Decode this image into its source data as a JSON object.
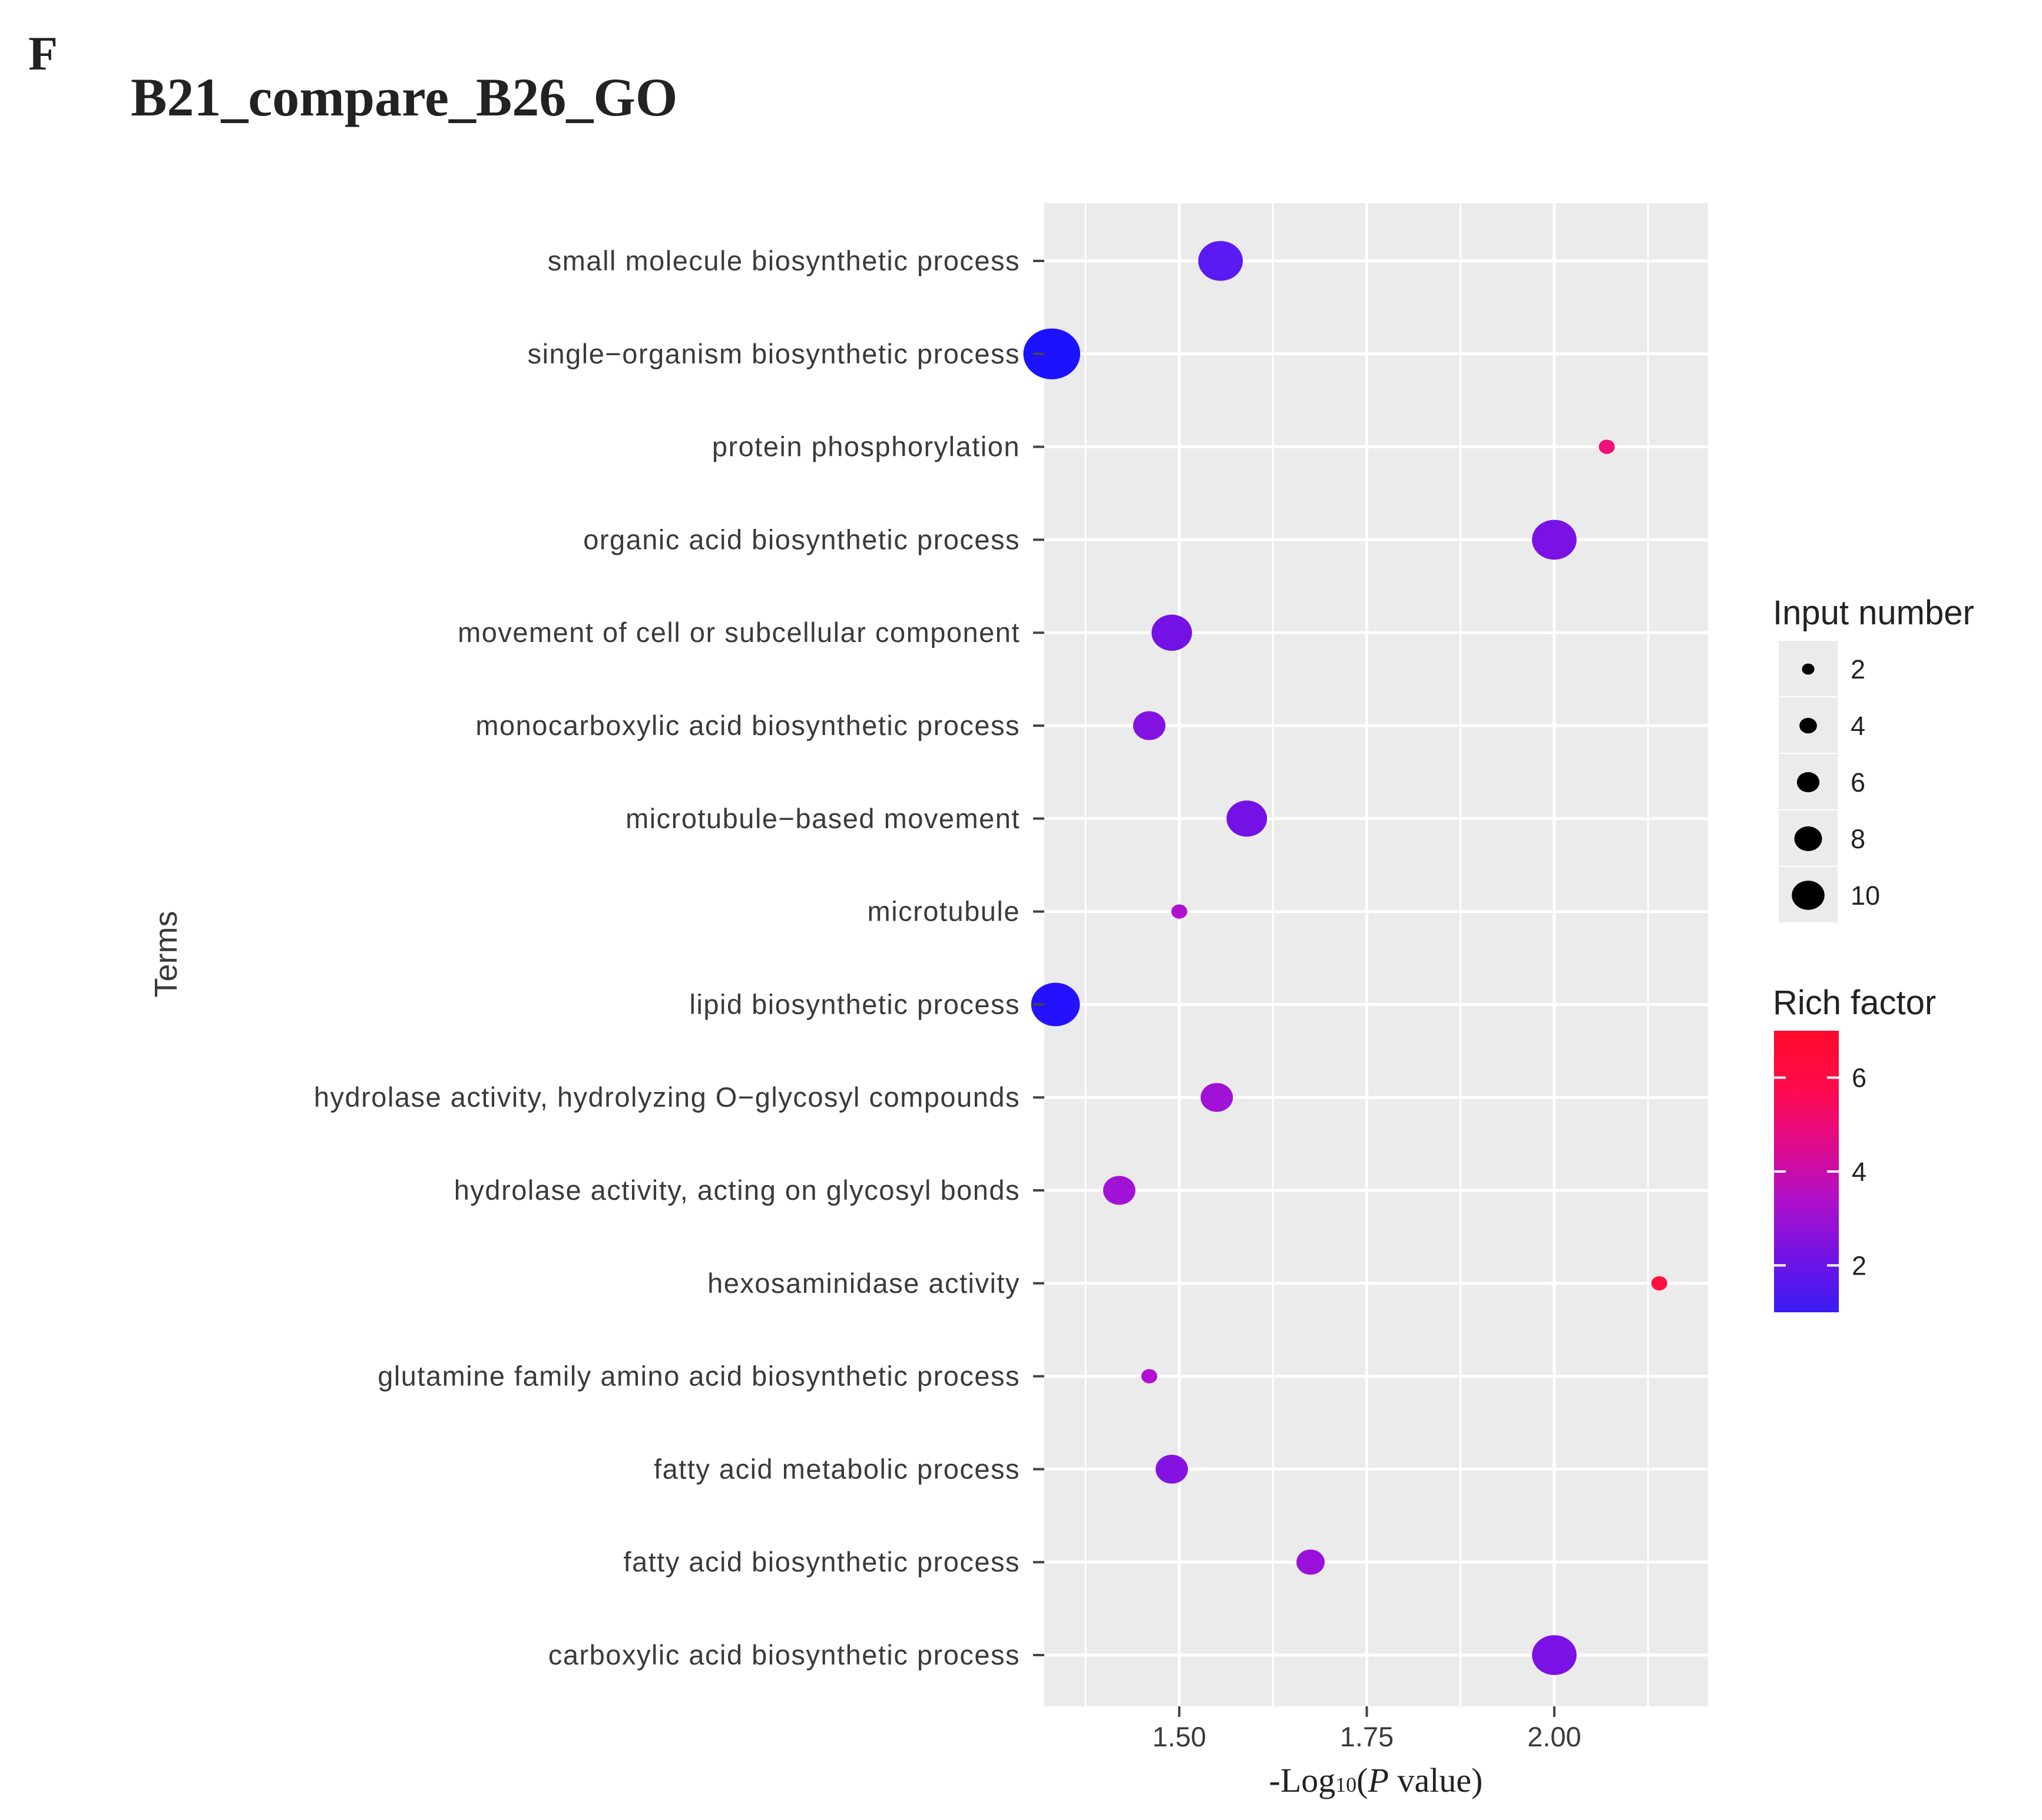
{
  "figure": {
    "panel_letter": "F",
    "title": "B21_compare_B26_GO"
  },
  "chart_data": {
    "type": "scatter",
    "title": "B21_compare_B26_GO",
    "xlabel": "-Log10(P value)",
    "xlabel_parts": {
      "prefix": "-Log",
      "subscript": "10",
      "open": "(",
      "italic": "P",
      "rest": " value)"
    },
    "ylabel": "Terms",
    "xlim": [
      1.32,
      2.205
    ],
    "xticks": [
      1.5,
      1.75,
      2.0
    ],
    "xtick_labels": [
      "1.50",
      "1.75",
      "2.00"
    ],
    "grid": true,
    "points": [
      {
        "term": "small molecule biosynthetic process",
        "x": 1.555,
        "input_number": 8,
        "rich_factor": 1.6,
        "color": "#5a1af2"
      },
      {
        "term": "single−organism biosynthetic process",
        "x": 1.33,
        "input_number": 11,
        "rich_factor": 1.0,
        "color": "#1c12ff"
      },
      {
        "term": "protein phosphorylation",
        "x": 2.07,
        "input_number": 1,
        "rich_factor": 5.5,
        "color": "#f0107a"
      },
      {
        "term": "organic acid biosynthetic process",
        "x": 2.0,
        "input_number": 8,
        "rich_factor": 2.0,
        "color": "#7a12e6"
      },
      {
        "term": "movement of cell or subcellular component",
        "x": 1.49,
        "input_number": 7,
        "rich_factor": 2.0,
        "color": "#7412e6"
      },
      {
        "term": "monocarboxylic acid biosynthetic process",
        "x": 1.46,
        "input_number": 5,
        "rich_factor": 2.2,
        "color": "#8412e2"
      },
      {
        "term": "microtubule−based movement",
        "x": 1.59,
        "input_number": 7,
        "rich_factor": 2.0,
        "color": "#7412e6"
      },
      {
        "term": "microtubule",
        "x": 1.5,
        "input_number": 1,
        "rich_factor": 2.8,
        "color": "#b010d0"
      },
      {
        "term": "lipid biosynthetic process",
        "x": 1.335,
        "input_number": 9,
        "rich_factor": 1.0,
        "color": "#2412ff"
      },
      {
        "term": "hydrolase activity, hydrolyzing O−glycosyl compounds",
        "x": 1.55,
        "input_number": 5,
        "rich_factor": 2.6,
        "color": "#a212d6"
      },
      {
        "term": "hydrolase activity, acting on glycosyl bonds",
        "x": 1.42,
        "input_number": 5,
        "rich_factor": 2.6,
        "color": "#a212d6"
      },
      {
        "term": "hexosaminidase activity",
        "x": 2.14,
        "input_number": 1,
        "rich_factor": 7.0,
        "color": "#ff1040"
      },
      {
        "term": "glutamine family amino acid biosynthetic process",
        "x": 1.46,
        "input_number": 1,
        "rich_factor": 2.8,
        "color": "#b010d0"
      },
      {
        "term": "fatty acid metabolic process",
        "x": 1.49,
        "input_number": 5,
        "rich_factor": 2.1,
        "color": "#8412e2"
      },
      {
        "term": "fatty acid biosynthetic process",
        "x": 1.675,
        "input_number": 4,
        "rich_factor": 2.5,
        "color": "#9a12da"
      },
      {
        "term": "carboxylic acid biosynthetic process",
        "x": 2.0,
        "input_number": 8,
        "rich_factor": 2.0,
        "color": "#7a12e6"
      }
    ],
    "size_legend": {
      "title": "Input number",
      "entries": [
        {
          "label": "2",
          "value": 2
        },
        {
          "label": "4",
          "value": 4
        },
        {
          "label": "6",
          "value": 6
        },
        {
          "label": "8",
          "value": 8
        },
        {
          "label": "10",
          "value": 10
        }
      ]
    },
    "color_legend": {
      "title": "Rich factor",
      "min": 1,
      "max": 7,
      "ticks": [
        {
          "label": "6",
          "value": 6
        },
        {
          "label": "4",
          "value": 4
        },
        {
          "label": "2",
          "value": 2
        }
      ],
      "colors": [
        "#3b1cf5",
        "#7212e4",
        "#b010c8",
        "#e00a8a",
        "#ff0a4a",
        "#ff0a2a"
      ]
    },
    "colors": {
      "panel_background": "#ebebeb",
      "grid": "#ffffff",
      "text": "#3a3a3a"
    }
  }
}
